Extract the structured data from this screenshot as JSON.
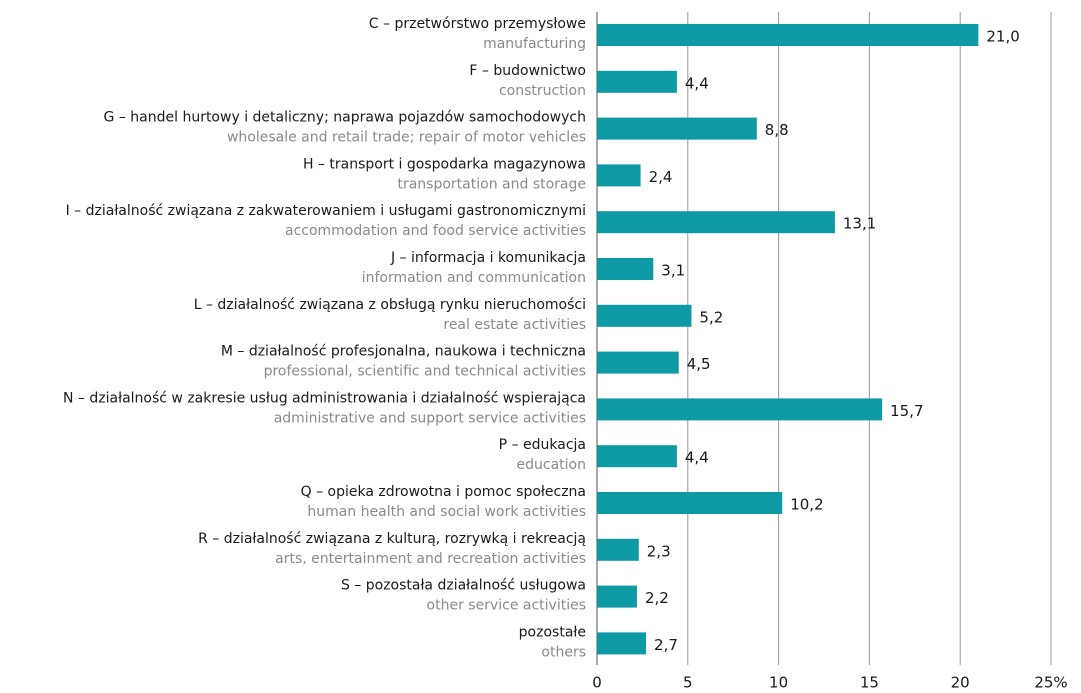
{
  "chart_data": {
    "type": "bar",
    "orientation": "horizontal",
    "categories": [
      "C – przetwórstwo przemysłowe",
      "F – budownictwo",
      "G – handel hurtowy i detaliczny; naprawa pojazdów samochodowych",
      "H – transport i gospodarka magazynowa",
      "I – działalność związana z zakwaterowaniem i usługami gastronomicznymi",
      "J – informacja i komunikacja",
      "L – działalność związana z obsługą rynku nieruchomości",
      "M – działalność profesjonalna, naukowa i techniczna",
      "N – działalność w zakresie usług administrowania i działalność wspierająca",
      "P – edukacja",
      "Q – opieka zdrowotna i pomoc społeczna",
      "R – działalność związana z kulturą, rozrywką i rekreacją",
      "S – pozostała działalność usługowa",
      "pozostałe"
    ],
    "categories_en": [
      "manufacturing",
      "construction",
      "wholesale and retail trade; repair of motor vehicles",
      "transportation and storage",
      "accommodation and food service activities",
      "information and communication",
      "real estate activities",
      "professional, scientific and technical activities",
      "administrative and support service activities",
      "education",
      "human health and social work activities",
      "arts, entertainment and recreation activities",
      "other service activities",
      "others"
    ],
    "values": [
      21.0,
      4.4,
      8.8,
      2.4,
      13.1,
      3.1,
      5.2,
      4.5,
      15.7,
      4.4,
      10.2,
      2.3,
      2.2,
      2.7
    ],
    "value_labels": [
      "21,0",
      "4,4",
      "8,8",
      "2,4",
      "13,1",
      "3,1",
      "5,2",
      "4,5",
      "15,7",
      "4,4",
      "10,2",
      "2,3",
      "2,2",
      "2,7"
    ],
    "color": "#0e9aa5",
    "xlim": [
      0,
      25
    ],
    "xticks": [
      0,
      5,
      10,
      15,
      20,
      {
        "value": 25,
        "label": "25%"
      }
    ],
    "grid": true
  }
}
